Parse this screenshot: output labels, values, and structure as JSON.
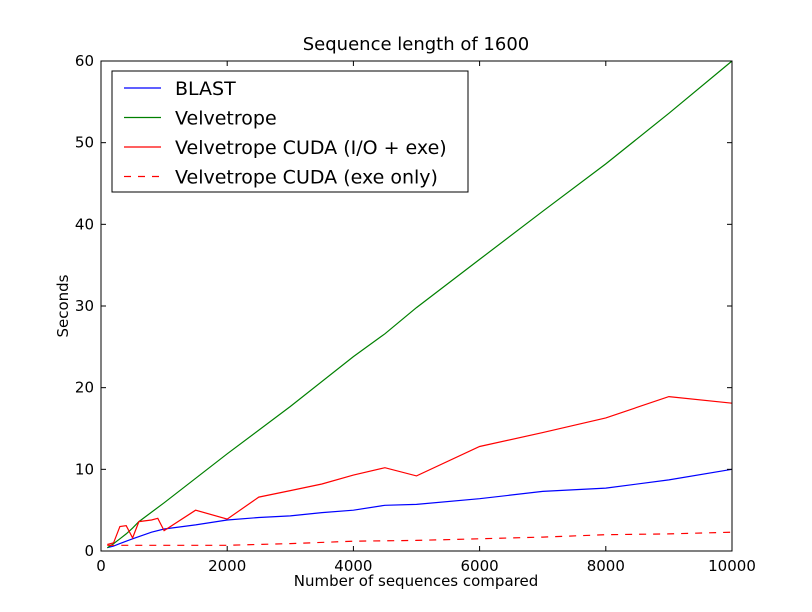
{
  "chart_data": {
    "type": "line",
    "title": "Sequence length of 1600",
    "xlabel": "Number of sequences compared",
    "ylabel": "Seconds",
    "xlim": [
      0,
      10000
    ],
    "ylim": [
      0,
      60
    ],
    "xticks": [
      0,
      2000,
      4000,
      6000,
      8000,
      10000
    ],
    "xtick_labels": [
      "0",
      "2000",
      "4000",
      "6000",
      "8000",
      "10000"
    ],
    "yticks": [
      0,
      10,
      20,
      30,
      40,
      50,
      60
    ],
    "ytick_labels": [
      "0",
      "10",
      "20",
      "30",
      "40",
      "50",
      "60"
    ],
    "grid": false,
    "legend_position": "top-left",
    "series": [
      {
        "name": "BLAST",
        "color": "#0000ff",
        "dash": "solid",
        "points": [
          [
            100,
            0.4
          ],
          [
            200,
            0.6
          ],
          [
            300,
            0.9
          ],
          [
            400,
            1.2
          ],
          [
            500,
            1.5
          ],
          [
            800,
            2.3
          ],
          [
            1000,
            2.7
          ],
          [
            1500,
            3.2
          ],
          [
            2000,
            3.8
          ],
          [
            2500,
            4.1
          ],
          [
            3000,
            4.3
          ],
          [
            3500,
            4.7
          ],
          [
            4000,
            5.0
          ],
          [
            4500,
            5.6
          ],
          [
            5000,
            5.7
          ],
          [
            6000,
            6.4
          ],
          [
            7000,
            7.3
          ],
          [
            8000,
            7.7
          ],
          [
            9000,
            8.7
          ],
          [
            10000,
            10.0
          ]
        ]
      },
      {
        "name": "Velvetrope",
        "color": "#008000",
        "dash": "solid",
        "points": [
          [
            100,
            0.4
          ],
          [
            200,
            0.9
          ],
          [
            300,
            1.5
          ],
          [
            400,
            2.1
          ],
          [
            500,
            2.8
          ],
          [
            600,
            3.6
          ],
          [
            1000,
            5.9
          ],
          [
            2000,
            11.9
          ],
          [
            3000,
            17.7
          ],
          [
            4000,
            23.8
          ],
          [
            4500,
            26.6
          ],
          [
            5000,
            29.8
          ],
          [
            6000,
            35.7
          ],
          [
            7000,
            41.6
          ],
          [
            8000,
            47.4
          ],
          [
            9000,
            53.6
          ],
          [
            10000,
            60.0
          ]
        ]
      },
      {
        "name": "Velvetrope CUDA (I/O + exe)",
        "color": "#ff0000",
        "dash": "solid",
        "points": [
          [
            100,
            0.8
          ],
          [
            200,
            1.0
          ],
          [
            300,
            3.0
          ],
          [
            400,
            3.1
          ],
          [
            500,
            1.6
          ],
          [
            600,
            3.6
          ],
          [
            800,
            3.8
          ],
          [
            900,
            4.0
          ],
          [
            1000,
            2.5
          ],
          [
            1500,
            5.0
          ],
          [
            2000,
            3.9
          ],
          [
            2500,
            6.6
          ],
          [
            3000,
            7.4
          ],
          [
            3500,
            8.2
          ],
          [
            4000,
            9.3
          ],
          [
            4500,
            10.2
          ],
          [
            5000,
            9.2
          ],
          [
            6000,
            12.8
          ],
          [
            7000,
            14.5
          ],
          [
            8000,
            16.3
          ],
          [
            9000,
            18.9
          ],
          [
            10000,
            18.1
          ]
        ]
      },
      {
        "name": "Velvetrope CUDA (exe only)",
        "color": "#ff0000",
        "dash": "dashed",
        "points": [
          [
            100,
            0.7
          ],
          [
            500,
            0.7
          ],
          [
            1000,
            0.7
          ],
          [
            2000,
            0.7
          ],
          [
            3000,
            0.9
          ],
          [
            4000,
            1.2
          ],
          [
            5000,
            1.3
          ],
          [
            6000,
            1.5
          ],
          [
            7000,
            1.7
          ],
          [
            8000,
            2.0
          ],
          [
            9000,
            2.1
          ],
          [
            10000,
            2.3
          ]
        ]
      }
    ]
  }
}
